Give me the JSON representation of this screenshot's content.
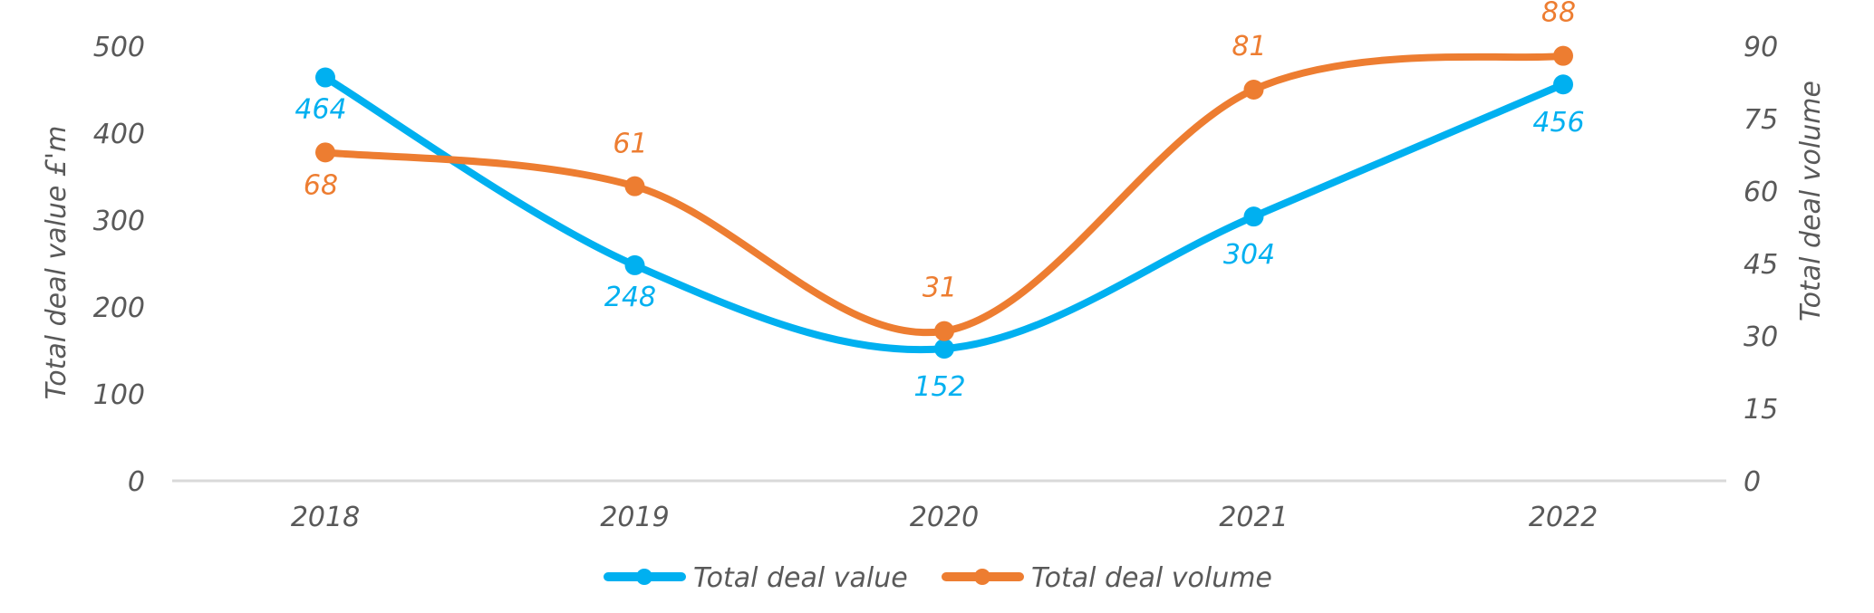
{
  "chart_data": {
    "type": "line",
    "title": "",
    "categories": [
      "2018",
      "2019",
      "2020",
      "2021",
      "2022"
    ],
    "series": [
      {
        "name": "Total deal value",
        "axis": "left",
        "color": "#00B0F0",
        "values": [
          464,
          248,
          152,
          304,
          456
        ],
        "labels": [
          "464",
          "248",
          "152",
          "304",
          "456"
        ],
        "smooth": true
      },
      {
        "name": "Total deal volume",
        "axis": "right",
        "color": "#ED7D31",
        "values": [
          68,
          61,
          31,
          81,
          88
        ],
        "labels": [
          "68",
          "61",
          "31",
          "81",
          "88"
        ],
        "smooth": true
      }
    ],
    "y_left": {
      "label": "Total deal value £'m",
      "ylim": [
        0,
        500
      ],
      "ticks": [
        "0",
        "100",
        "200",
        "300",
        "400",
        "500"
      ]
    },
    "y_right": {
      "label": "Total deal volume",
      "ylim": [
        0,
        90
      ],
      "ticks": [
        "0",
        "15",
        "30",
        "45",
        "60",
        "75",
        "90"
      ]
    },
    "xlabel": "",
    "grid": false,
    "legend": {
      "position": "bottom",
      "entries": [
        "Total deal value",
        "Total deal volume"
      ]
    }
  }
}
